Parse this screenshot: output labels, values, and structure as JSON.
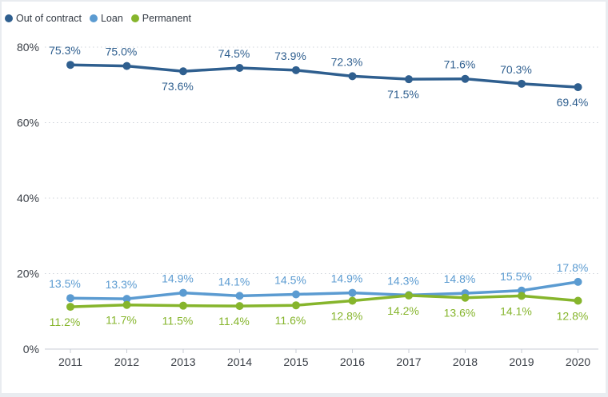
{
  "chart_data": {
    "type": "line",
    "title": "",
    "xlabel": "",
    "ylabel": "",
    "ylim": [
      0,
      80
    ],
    "yticks": [
      {
        "value": 0,
        "label": "0%"
      },
      {
        "value": 20,
        "label": "20%"
      },
      {
        "value": 40,
        "label": "40%"
      },
      {
        "value": 60,
        "label": "60%"
      },
      {
        "value": 80,
        "label": "80%"
      }
    ],
    "categories": [
      "2011",
      "2012",
      "2013",
      "2014",
      "2015",
      "2016",
      "2017",
      "2018",
      "2019",
      "2020"
    ],
    "grid": true,
    "legend_position": "top-left",
    "series": [
      {
        "name": "Out of contract",
        "color": "#2f5f8f",
        "values": [
          75.3,
          75.0,
          73.6,
          74.5,
          73.9,
          72.3,
          71.5,
          71.6,
          70.3,
          69.4
        ],
        "labels": [
          "75.3%",
          "75.0%",
          "73.6%",
          "74.5%",
          "73.9%",
          "72.3%",
          "71.5%",
          "71.6%",
          "70.3%",
          "69.4%"
        ],
        "label_side": [
          "above",
          "above",
          "below",
          "above",
          "above",
          "above",
          "below",
          "above",
          "above",
          "below"
        ]
      },
      {
        "name": "Loan",
        "color": "#5b9bd1",
        "values": [
          13.5,
          13.3,
          14.9,
          14.1,
          14.5,
          14.9,
          14.3,
          14.8,
          15.5,
          17.8
        ],
        "labels": [
          "13.5%",
          "13.3%",
          "14.9%",
          "14.1%",
          "14.5%",
          "14.9%",
          "14.3%",
          "14.8%",
          "15.5%",
          "17.8%"
        ],
        "label_side": [
          "above",
          "above",
          "above",
          "above",
          "above",
          "above",
          "above",
          "above",
          "above",
          "above"
        ]
      },
      {
        "name": "Permanent",
        "color": "#86b52c",
        "values": [
          11.2,
          11.7,
          11.5,
          11.4,
          11.6,
          12.8,
          14.2,
          13.6,
          14.1,
          12.8
        ],
        "labels": [
          "11.2%",
          "11.7%",
          "11.5%",
          "11.4%",
          "11.6%",
          "12.8%",
          "14.2%",
          "13.6%",
          "14.1%",
          "12.8%"
        ],
        "label_side": [
          "below",
          "below",
          "below",
          "below",
          "below",
          "below",
          "below",
          "below",
          "below",
          "below"
        ]
      }
    ]
  }
}
